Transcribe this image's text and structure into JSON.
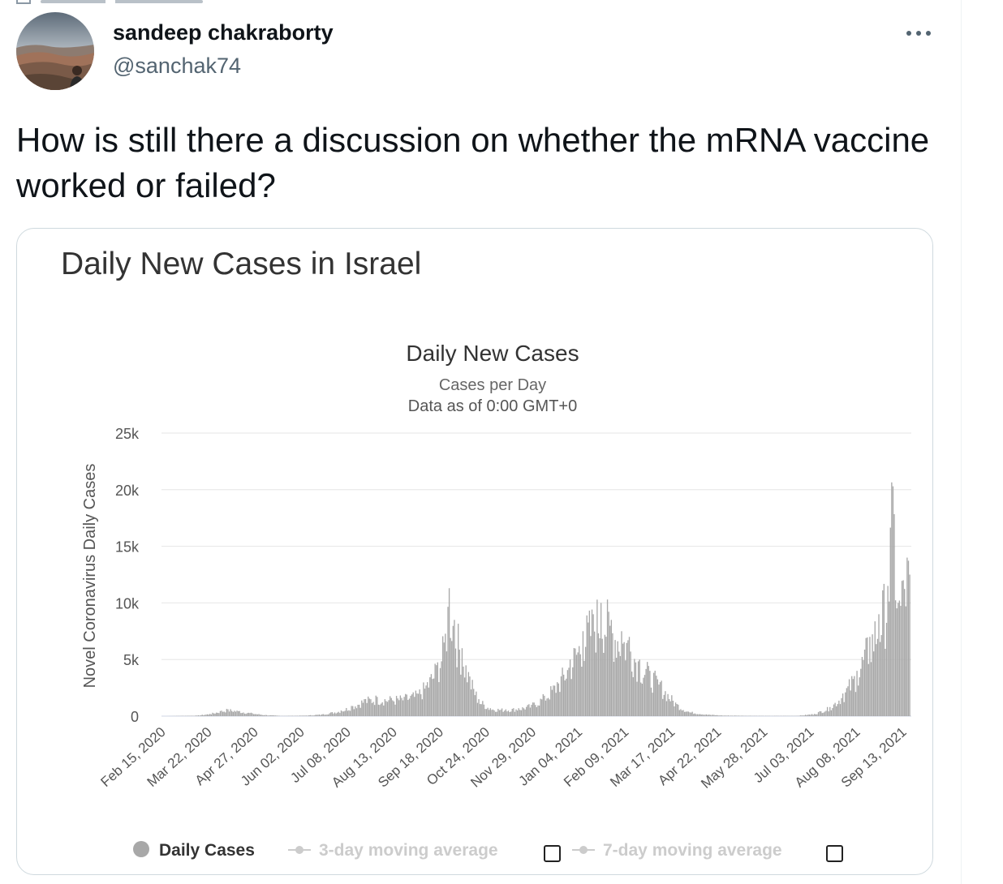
{
  "tweet": {
    "author_name": "sandeep chakraborty",
    "author_handle": "@sanchak74",
    "text": "How is still there a discussion on whether the mRNA vaccine worked or failed?",
    "more_icon": "more-horizontal-icon"
  },
  "card": {
    "title": "Daily New Cases in Israel"
  },
  "chart_data": {
    "type": "bar",
    "title": "Daily New Cases",
    "subtitle": "Cases per Day",
    "subtitle2": "Data as of 0:00 GMT+0",
    "ylabel": "Novel Coronavirus Daily Cases",
    "ylim": [
      0,
      25000
    ],
    "yticks": [
      {
        "value": 0,
        "label": "0"
      },
      {
        "value": 5000,
        "label": "5k"
      },
      {
        "value": 10000,
        "label": "10k"
      },
      {
        "value": 15000,
        "label": "15k"
      },
      {
        "value": 20000,
        "label": "20k"
      },
      {
        "value": 25000,
        "label": "25k"
      }
    ],
    "xtick_labels": [
      "Feb 15, 2020",
      "Mar 22, 2020",
      "Apr 27, 2020",
      "Jun 02, 2020",
      "Jul 08, 2020",
      "Aug 13, 2020",
      "Sep 18, 2020",
      "Oct 24, 2020",
      "Nov 29, 2020",
      "Jan 04, 2021",
      "Feb 09, 2021",
      "Mar 17, 2021",
      "Apr 22, 2021",
      "May 28, 2021",
      "Jul 03, 2021",
      "Aug 08, 2021",
      "Sep 13, 2021"
    ],
    "grid": true,
    "bar_color": "#a8a8a8",
    "series": [
      {
        "name": "Daily Cases",
        "approx_daily_values_by_date": [
          {
            "date": "2020-02-15",
            "value": 0
          },
          {
            "date": "2020-03-10",
            "value": 50
          },
          {
            "date": "2020-03-20",
            "value": 200
          },
          {
            "date": "2020-03-28",
            "value": 450
          },
          {
            "date": "2020-04-03",
            "value": 600
          },
          {
            "date": "2020-04-12",
            "value": 450
          },
          {
            "date": "2020-04-22",
            "value": 250
          },
          {
            "date": "2020-05-02",
            "value": 100
          },
          {
            "date": "2020-05-15",
            "value": 20
          },
          {
            "date": "2020-06-02",
            "value": 50
          },
          {
            "date": "2020-06-15",
            "value": 150
          },
          {
            "date": "2020-06-30",
            "value": 500
          },
          {
            "date": "2020-07-08",
            "value": 900
          },
          {
            "date": "2020-07-18",
            "value": 1500
          },
          {
            "date": "2020-07-28",
            "value": 1700
          },
          {
            "date": "2020-08-08",
            "value": 1600
          },
          {
            "date": "2020-08-18",
            "value": 1700
          },
          {
            "date": "2020-08-28",
            "value": 2000
          },
          {
            "date": "2020-09-05",
            "value": 3000
          },
          {
            "date": "2020-09-12",
            "value": 4500
          },
          {
            "date": "2020-09-18",
            "value": 6500
          },
          {
            "date": "2020-09-22",
            "value": 11300
          },
          {
            "date": "2020-09-26",
            "value": 8500
          },
          {
            "date": "2020-10-02",
            "value": 6000
          },
          {
            "date": "2020-10-08",
            "value": 3500
          },
          {
            "date": "2020-10-15",
            "value": 1500
          },
          {
            "date": "2020-10-24",
            "value": 700
          },
          {
            "date": "2020-11-05",
            "value": 600
          },
          {
            "date": "2020-11-15",
            "value": 700
          },
          {
            "date": "2020-11-25",
            "value": 1000
          },
          {
            "date": "2020-12-05",
            "value": 1800
          },
          {
            "date": "2020-12-15",
            "value": 3000
          },
          {
            "date": "2020-12-25",
            "value": 5000
          },
          {
            "date": "2021-01-04",
            "value": 7500
          },
          {
            "date": "2021-01-12",
            "value": 9000
          },
          {
            "date": "2021-01-18",
            "value": 10000
          },
          {
            "date": "2021-01-26",
            "value": 8500
          },
          {
            "date": "2021-02-03",
            "value": 7500
          },
          {
            "date": "2021-02-09",
            "value": 7000
          },
          {
            "date": "2021-02-17",
            "value": 5000
          },
          {
            "date": "2021-02-25",
            "value": 4000
          },
          {
            "date": "2021-03-05",
            "value": 3000
          },
          {
            "date": "2021-03-17",
            "value": 1200
          },
          {
            "date": "2021-03-27",
            "value": 400
          },
          {
            "date": "2021-04-10",
            "value": 150
          },
          {
            "date": "2021-04-22",
            "value": 60
          },
          {
            "date": "2021-05-28",
            "value": 20
          },
          {
            "date": "2021-06-20",
            "value": 30
          },
          {
            "date": "2021-07-03",
            "value": 200
          },
          {
            "date": "2021-07-15",
            "value": 800
          },
          {
            "date": "2021-07-25",
            "value": 2000
          },
          {
            "date": "2021-08-05",
            "value": 4000
          },
          {
            "date": "2021-08-15",
            "value": 7000
          },
          {
            "date": "2021-08-22",
            "value": 9000
          },
          {
            "date": "2021-08-29",
            "value": 11500
          },
          {
            "date": "2021-09-02",
            "value": 20300
          },
          {
            "date": "2021-09-06",
            "value": 10000
          },
          {
            "date": "2021-09-10",
            "value": 12000
          },
          {
            "date": "2021-09-13",
            "value": 14000
          },
          {
            "date": "2021-09-15",
            "value": 12500
          }
        ]
      }
    ],
    "legend": {
      "placement": "bottom",
      "items": [
        {
          "label": "Daily Cases",
          "color": "#a8a8a8",
          "active": true
        },
        {
          "label": "3-day moving average",
          "color": "#cccccc",
          "active": false
        },
        {
          "label": "7-day moving average",
          "color": "#cccccc",
          "active": false
        }
      ]
    }
  }
}
